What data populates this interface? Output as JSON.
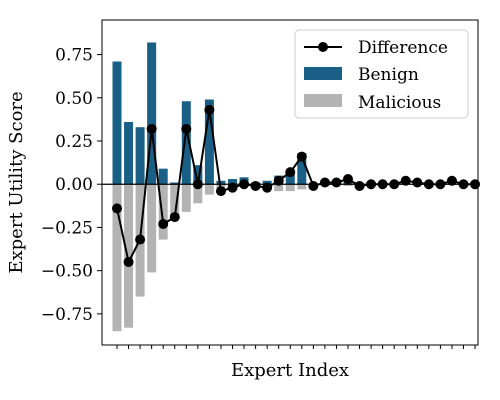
{
  "chart_data": {
    "type": "bar",
    "xlabel": "Expert Index",
    "ylabel": "Expert Utility Score",
    "ylim": [
      -0.93,
      0.95
    ],
    "yticks": [
      0.75,
      0.5,
      0.25,
      0.0,
      -0.25,
      -0.5,
      -0.75
    ],
    "ytick_labels": [
      "0.75",
      "0.50",
      "0.25",
      "0.00",
      "−0.25",
      "−0.50",
      "−0.75"
    ],
    "grid": false,
    "legend_position": "top-right",
    "x": [
      1,
      2,
      3,
      4,
      5,
      6,
      7,
      8,
      9,
      10,
      11,
      12,
      13,
      14,
      15,
      16,
      17,
      18,
      19,
      20,
      21,
      22,
      23,
      24,
      25,
      26,
      27,
      28,
      29,
      30,
      31,
      32
    ],
    "series": [
      {
        "name": "Benign",
        "kind": "bar",
        "color": "#1a5f86",
        "values": [
          0.71,
          0.36,
          0.33,
          0.82,
          0.09,
          0.01,
          0.48,
          0.11,
          0.49,
          0.02,
          0.03,
          0.04,
          0.01,
          0.02,
          0.05,
          0.08,
          0.18,
          0.0,
          0.01,
          0.01,
          0.02,
          0.0,
          0.0,
          0.0,
          0.0,
          0.01,
          0.0,
          0.0,
          0.0,
          0.0,
          0.0,
          0.0
        ]
      },
      {
        "name": "Malicious",
        "kind": "bar",
        "color": "#b3b3b3",
        "values": [
          -0.85,
          -0.83,
          -0.65,
          -0.51,
          -0.32,
          -0.2,
          -0.16,
          -0.11,
          -0.06,
          -0.04,
          -0.02,
          -0.01,
          -0.02,
          -0.02,
          -0.04,
          -0.04,
          -0.03,
          -0.01,
          -0.01,
          0.0,
          -0.01,
          -0.01,
          0.0,
          0.0,
          0.0,
          0.0,
          0.0,
          0.0,
          0.0,
          0.0,
          0.0,
          0.0
        ]
      },
      {
        "name": "Difference",
        "kind": "line",
        "color": "#000000",
        "values": [
          -0.14,
          -0.45,
          -0.32,
          0.32,
          -0.23,
          -0.19,
          0.32,
          0.0,
          0.43,
          -0.04,
          -0.02,
          0.0,
          -0.01,
          -0.02,
          0.02,
          0.07,
          0.16,
          -0.01,
          0.01,
          0.01,
          0.03,
          -0.01,
          0.0,
          0.0,
          0.0,
          0.02,
          0.01,
          0.0,
          0.0,
          0.02,
          0.0,
          0.0
        ]
      }
    ]
  }
}
